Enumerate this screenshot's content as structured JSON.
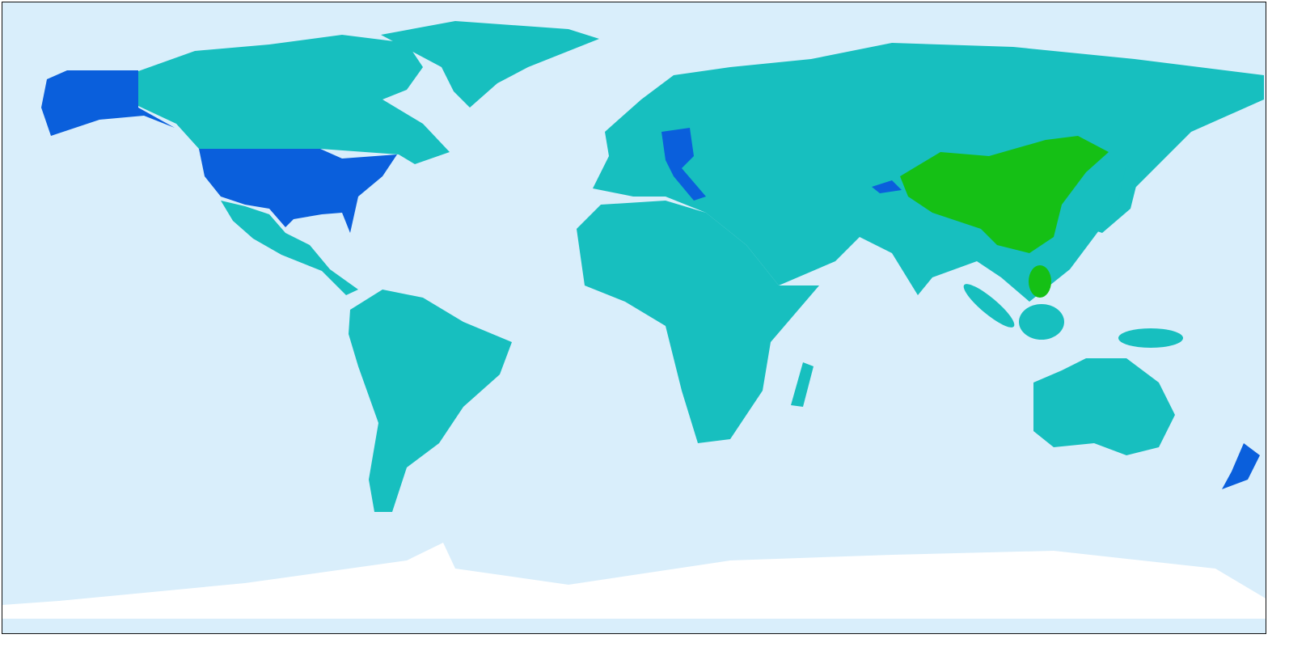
{
  "map": {
    "projection": "equirectangular",
    "colors": {
      "ocean": "#d9eefb",
      "land_default": "#17bfbf",
      "highlight_blue": "#0a5fdc",
      "highlight_green": "#15c015",
      "antarctica": "#ffffff",
      "border": "#111111"
    }
  }
}
